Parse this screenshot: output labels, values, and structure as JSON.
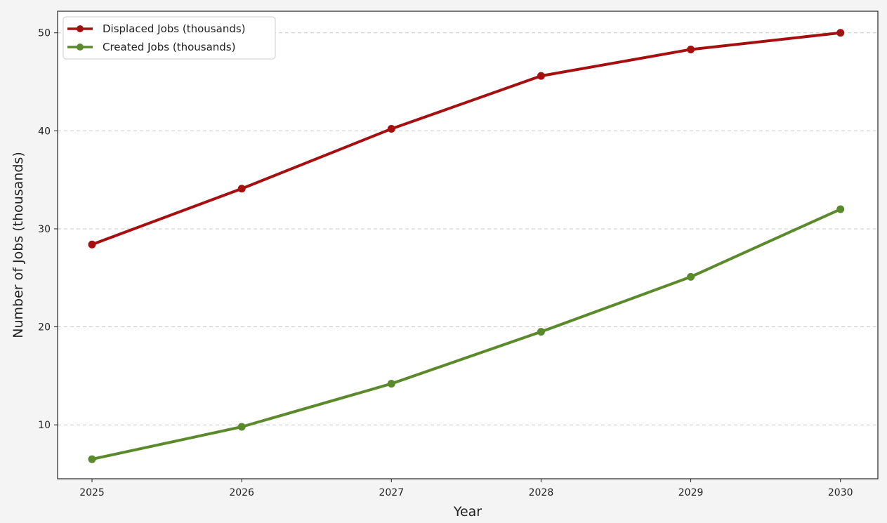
{
  "chart_data": {
    "type": "line",
    "title": "",
    "xlabel": "Year",
    "ylabel": "Number of Jobs (thousands)",
    "x": [
      "2025",
      "2026",
      "2027",
      "2028",
      "2029",
      "2030"
    ],
    "series": [
      {
        "name": "Displaced Jobs (thousands)",
        "color": "#a50f0f",
        "values": [
          28.4,
          34.1,
          40.2,
          45.6,
          48.3,
          50.0
        ]
      },
      {
        "name": "Created Jobs (thousands)",
        "color": "#5a8a2b",
        "values": [
          6.5,
          9.8,
          14.2,
          19.5,
          25.1,
          32.0
        ]
      }
    ],
    "xlim": [
      2024.77,
      2030.25
    ],
    "ylim": [
      4.5,
      52.2
    ],
    "yticks": [
      10,
      20,
      30,
      40,
      50
    ],
    "grid": "y-dashed",
    "legend_position": "upper-left"
  }
}
